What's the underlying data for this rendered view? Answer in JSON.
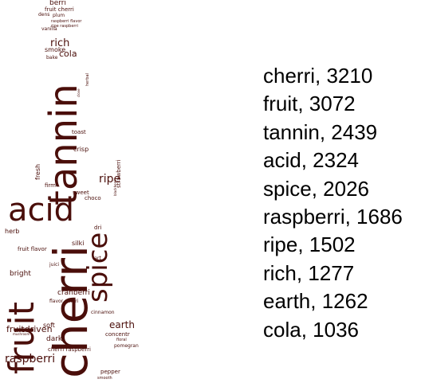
{
  "cloud": {
    "color": "#4a0e0a",
    "words": [
      "cherri",
      "fruit",
      "tannin",
      "acid",
      "spice",
      "raspberri",
      "ripe",
      "rich",
      "earth",
      "cola",
      "berri",
      "fruit cherri",
      "raspberri flavor",
      "ripe raspberri",
      "dens",
      "plum",
      "vanilla",
      "smoke",
      "bake",
      "crisp",
      "toast",
      "fresh",
      "firm",
      "sweet",
      "strawberri",
      "blackberri",
      "herb",
      "choco",
      "dri",
      "silki",
      "juici",
      "bright",
      "fruit flavor",
      "cranberri",
      "flavor cherri",
      "fruitdriven",
      "soft",
      "dark",
      "concentr",
      "mushroom",
      "pomegran",
      "pepper",
      "smooth",
      "cinnamon",
      "floral",
      "herbal",
      "clove",
      "tart",
      "cherri raspberri"
    ]
  },
  "legend": [
    "cherri, 3210",
    "fruit, 3072",
    "tannin, 2439",
    "acid, 2324",
    "spice, 2026",
    "raspberri, 1686",
    "ripe, 1502",
    "rich, 1277",
    "earth, 1262",
    "cola, 1036"
  ]
}
